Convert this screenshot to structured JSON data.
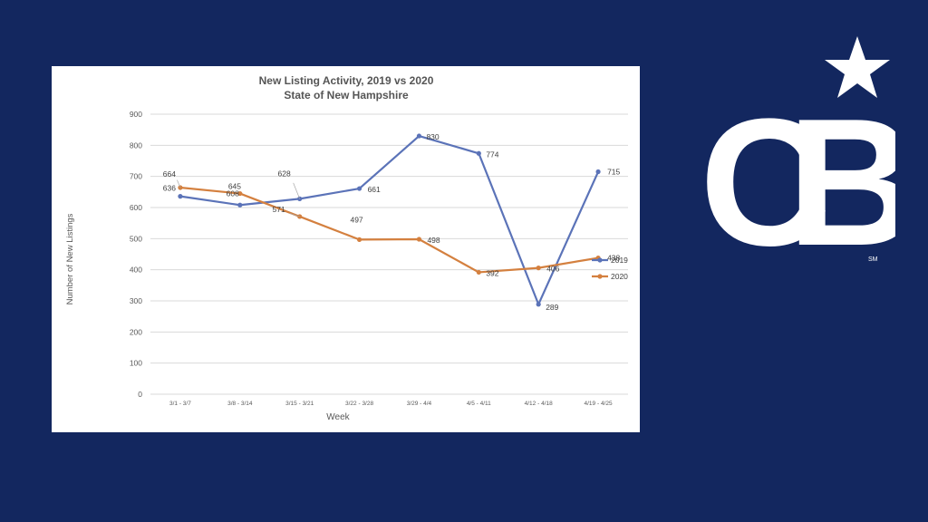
{
  "chart_data": {
    "type": "line",
    "title": "New Listing Activity, 2019 vs 2020",
    "subtitle": "State of New Hampshire",
    "xlabel": "Week",
    "ylabel": "Number of New Listings",
    "categories": [
      "3/1 - 3/7",
      "3/8 - 3/14",
      "3/15 - 3/21",
      "3/22 - 3/28",
      "3/29 - 4/4",
      "4/5 - 4/11",
      "4/12 - 4/18",
      "4/19 - 4/25"
    ],
    "ylim": [
      0,
      900
    ],
    "yticks": [
      0,
      100,
      200,
      300,
      400,
      500,
      600,
      700,
      800,
      900
    ],
    "grid": true,
    "legend": "right",
    "series": [
      {
        "name": "2019",
        "color": "#5b73b8",
        "values": [
          636,
          608,
          628,
          661,
          830,
          774,
          289,
          715
        ]
      },
      {
        "name": "2020",
        "color": "#d4803f",
        "values": [
          664,
          645,
          571,
          497,
          498,
          392,
          406,
          438
        ]
      }
    ]
  },
  "logo": {
    "text": "CB",
    "mark": "SM",
    "color": "#ffffff"
  }
}
